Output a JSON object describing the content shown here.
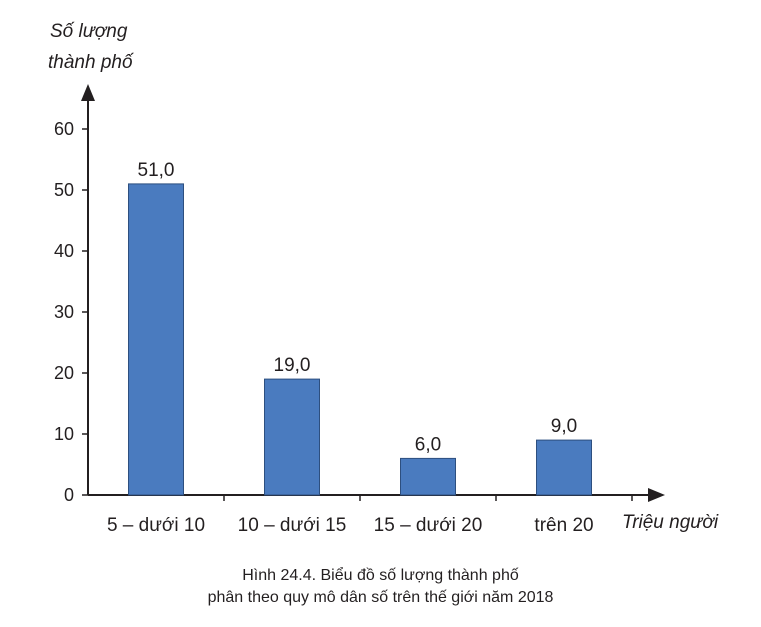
{
  "chart_data": {
    "type": "bar",
    "ylabel_line1": "Số lượng",
    "ylabel_line2": "thành phố",
    "xlabel": "Triệu người",
    "categories": [
      "5 – dưới 10",
      "10 – dưới 15",
      "15 – dưới 20",
      "trên 20"
    ],
    "values": [
      51.0,
      19.0,
      6.0,
      9.0
    ],
    "value_labels": [
      "51,0",
      "19,0",
      "6,0",
      "9,0"
    ],
    "yticks": [
      0,
      10,
      20,
      30,
      40,
      50,
      60
    ],
    "ylim": [
      0,
      60
    ],
    "bar_color": "#4a7bbf",
    "bar_edge_color": "#2d4f7f",
    "grid": false
  },
  "caption": {
    "line1": "Hình 24.4. Biểu đồ số lượng thành phố",
    "line2": "phân theo quy mô dân số trên thế giới năm 2018"
  }
}
